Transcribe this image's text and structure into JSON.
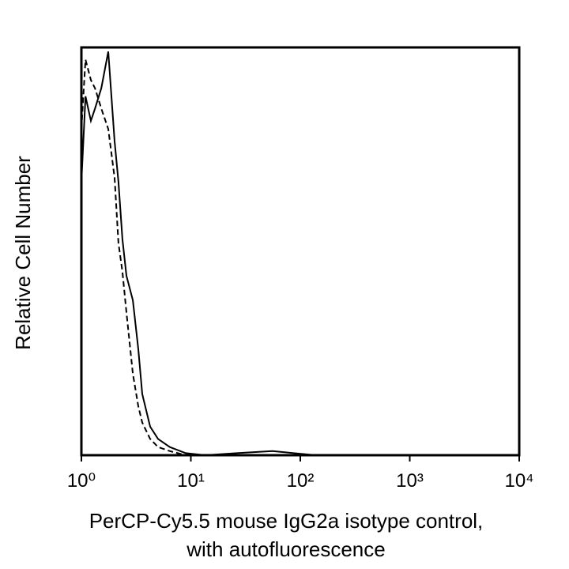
{
  "chart_data": {
    "type": "line",
    "xscale": "log",
    "ylabel": "Relative Cell Number",
    "xlabel": [
      "PerCP-Cy5.5 mouse IgG2a isotype control,",
      "with autofluorescence"
    ],
    "x": [
      1,
      1.09,
      1.22,
      1.33,
      1.52,
      1.76,
      2.01,
      2.18,
      2.37,
      2.58,
      2.95,
      3.31,
      3.6,
      4.25,
      5.02,
      6.43,
      8.98,
      13.6,
      26.4,
      55.7,
      139,
      10000
    ],
    "series": [
      {
        "color": "#000000",
        "style": "solid",
        "values": [
          67,
          88,
          82,
          85,
          90,
          99,
          77,
          67,
          53,
          44,
          38,
          26,
          15,
          7,
          4,
          2,
          0.5,
          0,
          0.5,
          1,
          0,
          0
        ]
      },
      {
        "color": "#000000",
        "style": "dashed",
        "values": [
          80,
          97,
          92,
          90,
          85,
          80,
          68,
          52,
          45,
          35,
          20,
          12,
          8,
          4,
          2,
          1,
          0,
          0,
          0,
          0,
          0,
          0
        ]
      }
    ],
    "xlim": [
      1,
      10000
    ],
    "ylim": [
      0,
      100
    ],
    "xticks": [
      {
        "value": 1,
        "label": "10⁰"
      },
      {
        "value": 10,
        "label": "10¹"
      },
      {
        "value": 100,
        "label": "10²"
      },
      {
        "value": 1000,
        "label": "10³"
      },
      {
        "value": 10000,
        "label": "10⁴"
      }
    ]
  }
}
